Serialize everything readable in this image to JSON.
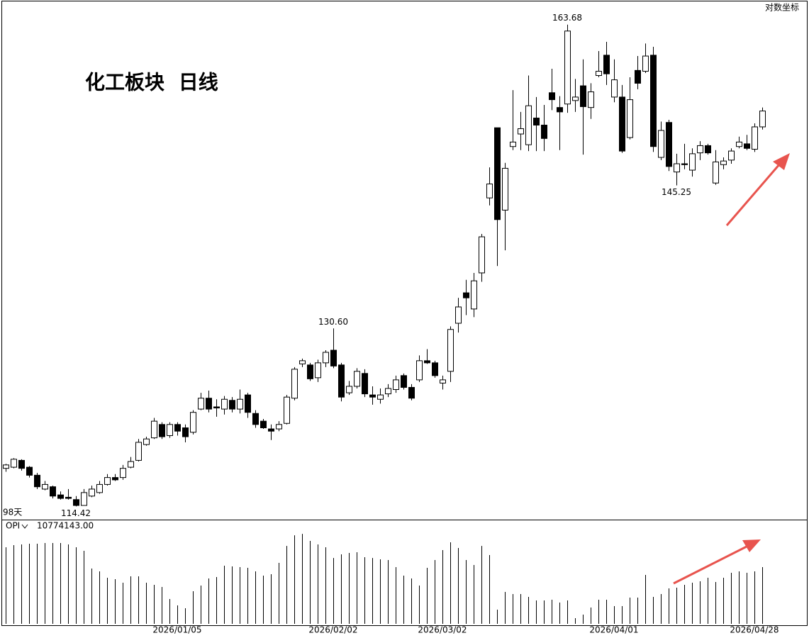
{
  "chart_data": {
    "type": "candlestick",
    "title": "化工板块 日线",
    "scale_label": "对数坐标",
    "log_scale": true,
    "period_label": "98天",
    "up_color": "#ffffff",
    "down_color": "#000000",
    "ylim": [
      113.3,
      166.7
    ],
    "categories": [
      null,
      null,
      null,
      null,
      null,
      null,
      null,
      null,
      null,
      null,
      null,
      null,
      null,
      null,
      null,
      null,
      null,
      null,
      null,
      null,
      null,
      null,
      "2026/01/05",
      null,
      null,
      null,
      null,
      null,
      null,
      null,
      null,
      null,
      null,
      null,
      null,
      null,
      null,
      null,
      null,
      null,
      null,
      null,
      "2026/02/02",
      null,
      null,
      null,
      null,
      null,
      null,
      null,
      null,
      null,
      null,
      null,
      null,
      null,
      "2026/03/02",
      null,
      null,
      null,
      null,
      null,
      null,
      null,
      null,
      null,
      null,
      null,
      null,
      null,
      null,
      null,
      null,
      null,
      null,
      null,
      null,
      null,
      "2026/04/01",
      null,
      null,
      null,
      null,
      null,
      null,
      null,
      null,
      null,
      null,
      null,
      null,
      null,
      null,
      null,
      null,
      null,
      "2026/04/28",
      null
    ],
    "open": [
      117.7,
      117.8,
      118.4,
      117.8,
      117.1,
      115.9,
      116.1,
      115.4,
      115.2,
      115.0,
      114.5,
      115.3,
      115.6,
      116.3,
      116.9,
      116.9,
      117.8,
      118.4,
      119.8,
      120.4,
      121.6,
      120.6,
      121.6,
      121.3,
      120.9,
      123.0,
      124.0,
      123.2,
      123.0,
      123.8,
      123.0,
      124.3,
      122.6,
      121.9,
      121.2,
      121.2,
      121.7,
      124.0,
      127.2,
      127.1,
      125.9,
      127.3,
      128.5,
      127.1,
      124.5,
      125.1,
      126.3,
      124.3,
      123.9,
      124.4,
      124.8,
      126.1,
      125.0,
      125.7,
      127.5,
      127.3,
      125.4,
      126.5,
      131.1,
      134.1,
      132.5,
      136.1,
      143.9,
      151.6,
      142.6,
      149.5,
      150.9,
      149.7,
      152.7,
      151.9,
      155.6,
      153.9,
      154.3,
      154.7,
      156.4,
      153.9,
      157.6,
      160.0,
      155.1,
      155.1,
      150.5,
      158.2,
      158.1,
      160.0,
      148.3,
      152.2,
      146.7,
      147.6,
      146.9,
      148.8,
      149.6,
      145.5,
      147.5,
      148.0,
      149.5,
      149.8,
      149.2,
      151.7
    ],
    "high": [
      118.1,
      118.6,
      118.5,
      117.9,
      117.3,
      116.6,
      116.2,
      115.7,
      115.9,
      115.3,
      115.9,
      116.2,
      116.6,
      117.2,
      117.2,
      118.0,
      118.7,
      120.3,
      120.5,
      122.2,
      121.8,
      121.8,
      121.8,
      121.6,
      122.9,
      124.5,
      124.7,
      123.9,
      124.2,
      124.1,
      124.8,
      124.5,
      122.9,
      122.1,
      121.6,
      121.9,
      124.3,
      126.9,
      127.7,
      127.3,
      127.6,
      128.5,
      130.6,
      127.3,
      125.6,
      126.8,
      126.7,
      125.1,
      124.9,
      125.3,
      126.1,
      126.3,
      125.3,
      128.0,
      128.6,
      127.5,
      126.1,
      130.8,
      133.6,
      135.4,
      136.1,
      140.1,
      147.2,
      151.6,
      147.7,
      155.9,
      153.4,
      157.6,
      155.1,
      154.2,
      158.4,
      155.2,
      163.68,
      157.2,
      159.5,
      156.7,
      160.5,
      161.6,
      159.5,
      156.5,
      157.4,
      159.9,
      161.4,
      161.0,
      152.3,
      152.5,
      148.7,
      149.8,
      149.3,
      150.1,
      149.8,
      149.1,
      148.3,
      149.3,
      150.6,
      150.8,
      152.1,
      153.9
    ],
    "low": [
      117.4,
      117.7,
      117.5,
      116.9,
      115.9,
      115.8,
      115.1,
      115.0,
      115.0,
      114.42,
      114.5,
      115.2,
      115.5,
      116.2,
      116.6,
      116.7,
      117.7,
      118.3,
      119.7,
      120.3,
      120.3,
      120.4,
      120.6,
      120.0,
      120.7,
      122.9,
      122.7,
      122.3,
      122.5,
      122.7,
      122.6,
      122.2,
      121.3,
      121.2,
      120.2,
      121.0,
      121.6,
      123.8,
      126.9,
      125.6,
      125.5,
      126.9,
      126.8,
      123.7,
      124.3,
      124.9,
      124.1,
      123.4,
      123.5,
      124.1,
      124.5,
      124.8,
      123.8,
      125.5,
      127.2,
      125.9,
      124.8,
      125.5,
      130.2,
      131.9,
      131.7,
      135.2,
      143.1,
      136.8,
      138.4,
      149.1,
      149.1,
      149.0,
      149.0,
      149.0,
      153.6,
      149.1,
      153.3,
      153.4,
      148.6,
      152.6,
      157.4,
      156.5,
      154.5,
      148.8,
      150.3,
      156.0,
      157.9,
      148.9,
      148.0,
      146.8,
      145.25,
      147.0,
      146.2,
      148.0,
      148.6,
      145.3,
      147.0,
      147.6,
      149.3,
      149.1,
      148.9,
      151.4
    ],
    "close": [
      118.0,
      118.5,
      117.7,
      117.1,
      116.1,
      116.3,
      115.3,
      115.1,
      115.1,
      114.5,
      115.6,
      115.9,
      116.3,
      116.9,
      116.7,
      117.7,
      118.3,
      120.0,
      120.3,
      121.9,
      120.5,
      121.6,
      121.0,
      120.5,
      122.7,
      124.0,
      123.0,
      123.1,
      123.9,
      123.0,
      123.9,
      122.7,
      121.6,
      121.3,
      121.0,
      121.6,
      124.1,
      126.7,
      127.5,
      125.8,
      127.3,
      128.3,
      127.0,
      124.1,
      125.1,
      126.5,
      124.4,
      124.1,
      124.3,
      124.9,
      125.7,
      125.0,
      124.0,
      127.5,
      127.3,
      126.1,
      125.7,
      130.5,
      132.7,
      133.6,
      135.3,
      139.8,
      145.4,
      141.6,
      147.1,
      150.0,
      151.5,
      154.1,
      151.9,
      150.4,
      154.8,
      153.4,
      162.9,
      155.1,
      154.0,
      155.7,
      158.1,
      157.8,
      157.1,
      149.0,
      154.8,
      156.7,
      159.9,
      149.5,
      151.3,
      147.3,
      147.6,
      147.5,
      148.7,
      149.6,
      148.8,
      147.8,
      147.9,
      149.0,
      150.0,
      149.3,
      151.7,
      153.5
    ],
    "annotations": [
      {
        "index": 72,
        "at": "high",
        "label": "163.68"
      },
      {
        "index": 42,
        "at": "high",
        "label": "130.60"
      },
      {
        "index": 86,
        "at": "low",
        "label": "145.25"
      },
      {
        "index": 9,
        "at": "low",
        "label": "114.42"
      }
    ],
    "indicator": {
      "type": "bar",
      "name": "OPI",
      "color": "#000000",
      "current_label": "10774143.00",
      "ylim": [
        0,
        18860000
      ],
      "values": [
        14550000,
        14950000,
        15080000,
        15220000,
        15220000,
        15350000,
        15350000,
        15350000,
        15080000,
        14550000,
        13870000,
        10500000,
        9970000,
        8750000,
        8480000,
        7810000,
        9020000,
        9020000,
        7810000,
        7410000,
        7000000,
        4710000,
        3500000,
        2960000,
        6200000,
        7270000,
        8620000,
        8890000,
        11040000,
        10910000,
        10770000,
        10640000,
        9970000,
        9160000,
        9430000,
        11580000,
        14810000,
        16830000,
        17100000,
        15760000,
        15080000,
        14550000,
        12520000,
        13200000,
        13470000,
        13600000,
        12660000,
        12520000,
        12260000,
        12120000,
        10770000,
        9160000,
        8620000,
        7270000,
        10640000,
        12120000,
        14010000,
        15490000,
        14410000,
        12120000,
        11180000,
        14810000,
        13060000,
        2690000,
        6060000,
        5660000,
        5660000,
        5120000,
        4440000,
        4440000,
        4580000,
        4040000,
        4440000,
        1080000,
        1750000,
        3100000,
        4580000,
        4580000,
        3370000,
        3370000,
        4980000,
        4980000,
        9290000,
        5120000,
        5660000,
        6730000,
        6870000,
        7410000,
        7810000,
        8080000,
        8750000,
        7950000,
        8750000,
        9700000,
        9970000,
        9700000,
        9970000,
        10774143
      ]
    }
  }
}
